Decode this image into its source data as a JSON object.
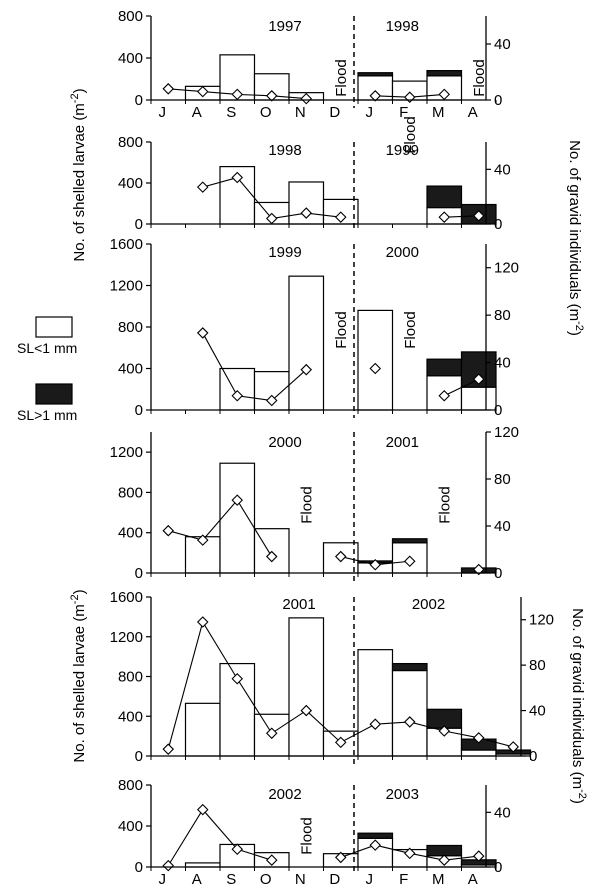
{
  "labels": {
    "ylabel_left": "No. of shelled larvae (m",
    "ylabel_left_exp": "-2",
    "ylabel_left_close": ")",
    "ylabel_right": "No. of gravid individuals (m",
    "ylabel_right_exp": "-2",
    "ylabel_right_close": ")",
    "flood": "Flood"
  },
  "legend": {
    "items": [
      {
        "label": "SL<1 mm",
        "color": "#ffffff"
      },
      {
        "label": "SL>1 mm",
        "color": "#000000"
      }
    ]
  },
  "chart_data": [
    {
      "type": "bar",
      "months": [
        "J",
        "A",
        "S",
        "O",
        "N",
        "D",
        "J",
        "F",
        "M",
        "A"
      ],
      "show_month_labels": true,
      "year_labels": [
        "1997",
        "1998"
      ],
      "ylim": [
        0,
        800
      ],
      "yticks": [
        0,
        400,
        800
      ],
      "y2lim": [
        0,
        60
      ],
      "y2ticks": [
        0,
        40
      ],
      "small": [
        null,
        130,
        430,
        250,
        70,
        null,
        230,
        180,
        230,
        0
      ],
      "large": [
        null,
        0,
        0,
        0,
        0,
        null,
        30,
        0,
        50,
        0
      ],
      "gravid": [
        8,
        6,
        4,
        3,
        1,
        null,
        3,
        2,
        4,
        null
      ],
      "flood": [
        5,
        9
      ]
    },
    {
      "type": "bar",
      "months": [
        "J",
        "A",
        "S",
        "O",
        "N",
        "D",
        "J",
        "F",
        "M",
        "A"
      ],
      "show_month_labels": false,
      "year_labels": [
        "1998",
        "1999"
      ],
      "ylim": [
        0,
        800
      ],
      "yticks": [
        0,
        400,
        800
      ],
      "y2lim": [
        0,
        60
      ],
      "y2ticks": [
        0,
        40
      ],
      "small": [
        null,
        null,
        560,
        210,
        410,
        240,
        null,
        null,
        160,
        0
      ],
      "large": [
        null,
        null,
        0,
        0,
        0,
        0,
        null,
        null,
        210,
        190
      ],
      "gravid": [
        null,
        27,
        34,
        4,
        8,
        5,
        null,
        null,
        5,
        6
      ],
      "flood": [
        7
      ]
    },
    {
      "type": "bar",
      "months": [
        "J",
        "A",
        "S",
        "O",
        "N",
        "D",
        "J",
        "F",
        "M",
        "A"
      ],
      "show_month_labels": false,
      "year_labels": [
        "1999",
        "2000"
      ],
      "ylim": [
        0,
        1600
      ],
      "yticks": [
        0,
        400,
        800,
        1200,
        1600
      ],
      "y2lim": [
        0,
        140
      ],
      "y2ticks": [
        0,
        40,
        80,
        120
      ],
      "small": [
        null,
        null,
        400,
        370,
        1290,
        null,
        960,
        null,
        330,
        220
      ],
      "large": [
        null,
        null,
        0,
        0,
        0,
        null,
        0,
        null,
        160,
        340
      ],
      "gravid": [
        null,
        65,
        12,
        8,
        34,
        null,
        35,
        null,
        12,
        26
      ],
      "flood": [
        5,
        7
      ]
    },
    {
      "type": "bar",
      "months": [
        "J",
        "A",
        "S",
        "O",
        "N",
        "D",
        "J",
        "F",
        "M",
        "A"
      ],
      "show_month_labels": false,
      "year_labels": [
        "2000",
        "2001"
      ],
      "ylim": [
        0,
        1400
      ],
      "yticks": [
        0,
        400,
        800,
        1200
      ],
      "y2lim": [
        0,
        120
      ],
      "y2ticks": [
        0,
        40,
        80,
        120
      ],
      "small": [
        null,
        360,
        1090,
        440,
        null,
        300,
        100,
        300,
        null,
        0
      ],
      "large": [
        null,
        0,
        0,
        0,
        null,
        0,
        20,
        40,
        null,
        50
      ],
      "gravid": [
        36,
        28,
        62,
        14,
        null,
        14,
        7,
        10,
        null,
        3
      ],
      "flood": [
        4,
        8
      ]
    },
    {
      "type": "bar",
      "months": [
        "J",
        "A",
        "S",
        "O",
        "N",
        "D",
        "J",
        "F",
        "M",
        "A"
      ],
      "show_month_labels": false,
      "extra_bins": 1,
      "year_labels": [
        "2001",
        "2002"
      ],
      "ylim": [
        0,
        1600
      ],
      "yticks": [
        0,
        400,
        800,
        1200,
        1600
      ],
      "y2lim": [
        0,
        140
      ],
      "y2ticks": [
        0,
        40,
        80,
        120
      ],
      "small": [
        null,
        530,
        930,
        420,
        1390,
        250,
        1070,
        860,
        280,
        60,
        20
      ],
      "large": [
        null,
        0,
        0,
        0,
        0,
        0,
        0,
        70,
        190,
        110,
        40
      ],
      "gravid": [
        6,
        118,
        68,
        20,
        40,
        12,
        28,
        30,
        22,
        16,
        8
      ],
      "flood": []
    },
    {
      "type": "bar",
      "months": [
        "J",
        "A",
        "S",
        "O",
        "N",
        "D",
        "J",
        "F",
        "M",
        "A"
      ],
      "show_month_labels": true,
      "year_labels": [
        "2002",
        "2003"
      ],
      "ylim": [
        0,
        800
      ],
      "yticks": [
        0,
        400,
        800
      ],
      "y2lim": [
        0,
        60
      ],
      "y2ticks": [
        0,
        40
      ],
      "small": [
        null,
        40,
        220,
        140,
        null,
        130,
        280,
        170,
        110,
        20
      ],
      "large": [
        null,
        0,
        0,
        0,
        null,
        0,
        50,
        0,
        100,
        50
      ],
      "gravid": [
        1,
        42,
        13,
        5,
        null,
        7,
        16,
        10,
        5,
        8
      ],
      "flood": [
        4
      ]
    }
  ]
}
